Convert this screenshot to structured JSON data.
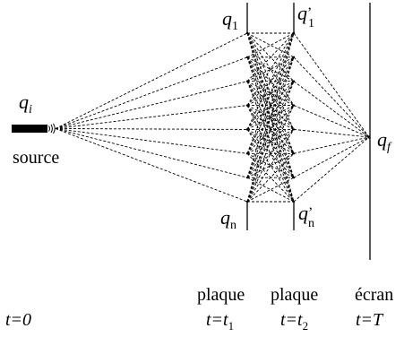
{
  "labels": {
    "q_i_main": "q",
    "q_i_sub": "i",
    "source": "source",
    "q1_main": "q",
    "q1_sub": "1",
    "q1p_main": "q",
    "q1p_sub": "1",
    "q1p_prime": "’",
    "qn_main": "q",
    "qn_sub": "n",
    "qnp_main": "q",
    "qnp_sub": "n",
    "qnp_prime": "’",
    "qf_main": "q",
    "qf_sub": "f"
  },
  "columns": {
    "plaque1": "plaque",
    "plaque2": "plaque",
    "ecran": "écran"
  },
  "times": {
    "t0": "t=0",
    "t1_main": "t=t",
    "t1_sub": "1",
    "t2_main": "t=t",
    "t2_sub": "2",
    "tT": "t=T"
  }
}
